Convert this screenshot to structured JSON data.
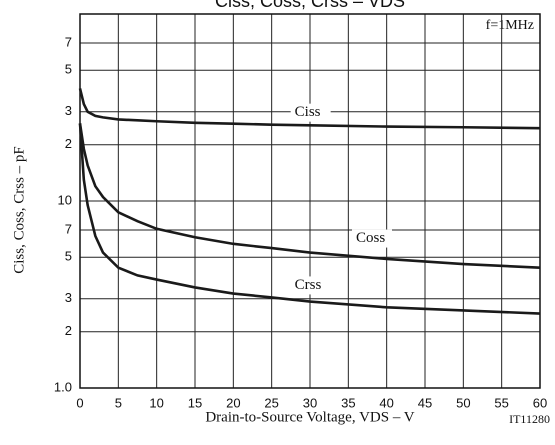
{
  "chart_data": {
    "type": "line",
    "title": "Ciss, Coss, Crss – VDS",
    "x_label": "Drain-to-Source Voltage, VDS – V",
    "y_label": "Ciss, Coss, Crss – pF",
    "annotations": [
      "f=1MHz",
      "IT11280"
    ],
    "x": [
      0,
      0.5,
      1,
      2,
      3,
      5,
      7.5,
      10,
      15,
      20,
      25,
      30,
      40,
      50,
      60
    ],
    "series": [
      {
        "name": "Ciss",
        "color": "#1a1a1a",
        "values": [
          40,
          33,
          30,
          28.5,
          28,
          27.3,
          27,
          26.7,
          26.2,
          25.9,
          25.6,
          25.4,
          25,
          24.8,
          24.5
        ]
      },
      {
        "name": "Coss",
        "color": "#1a1a1a",
        "values": [
          26,
          19,
          15.5,
          12,
          10.5,
          8.7,
          7.8,
          7.1,
          6.4,
          5.9,
          5.6,
          5.3,
          4.9,
          4.6,
          4.4
        ]
      },
      {
        "name": "Crss",
        "color": "#1a1a1a",
        "values": [
          26,
          13,
          9.5,
          6.5,
          5.3,
          4.4,
          4.0,
          3.8,
          3.45,
          3.2,
          3.05,
          2.9,
          2.7,
          2.6,
          2.5
        ]
      }
    ],
    "xlim": [
      0,
      60
    ],
    "xticks": [
      0,
      5,
      10,
      15,
      20,
      25,
      30,
      35,
      40,
      45,
      50,
      55,
      60
    ],
    "ylim": [
      1,
      100
    ],
    "log_y": true,
    "yticks": [
      {
        "value": 1,
        "label": "1.0"
      },
      2,
      3,
      5,
      7,
      10,
      {
        "value": 20,
        "label": "2"
      },
      {
        "value": 30,
        "label": "3"
      },
      {
        "value": 50,
        "label": "5"
      },
      {
        "value": 70,
        "label": "7"
      }
    ],
    "grid": true
  }
}
